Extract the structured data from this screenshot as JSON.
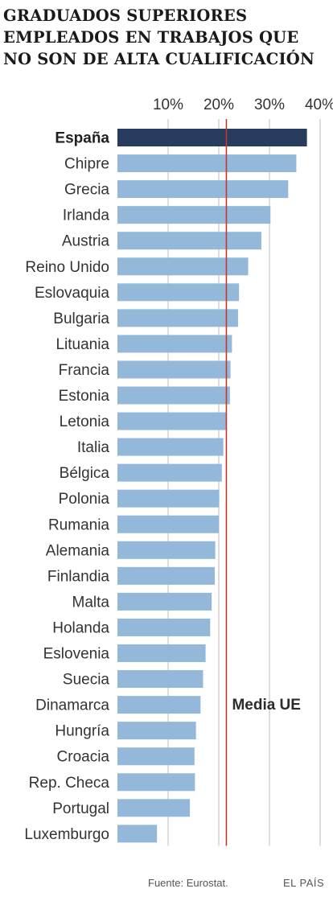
{
  "title_lines": [
    "GRADUADOS SUPERIORES",
    "EMPLEADOS EN TRABAJOS QUE",
    "NO SON DE ALTA CUALIFICACIÓN"
  ],
  "chart_data": {
    "type": "bar",
    "orientation": "horizontal",
    "title": "GRADUADOS SUPERIORES EMPLEADOS EN TRABAJOS QUE NO SON DE ALTA CUALIFICACIÓN",
    "categories": [
      "España",
      "Chipre",
      "Grecia",
      "Irlanda",
      "Austria",
      "Reino Unido",
      "Eslovaquia",
      "Bulgaria",
      "Lituania",
      "Francia",
      "Estonia",
      "Letonia",
      "Italia",
      "Bélgica",
      "Polonia",
      "Rumania",
      "Alemania",
      "Finlandia",
      "Malta",
      "Holanda",
      "Eslovenia",
      "Suecia",
      "Dinamarca",
      "Hungría",
      "Croacia",
      "Rep. Checa",
      "Portugal",
      "Luxemburgo"
    ],
    "values": [
      37.4,
      35.3,
      33.7,
      30.2,
      28.4,
      25.8,
      24.0,
      23.8,
      22.6,
      22.3,
      22.2,
      21.5,
      20.9,
      20.6,
      20.1,
      20.0,
      19.3,
      19.2,
      18.6,
      18.3,
      17.4,
      16.9,
      16.4,
      15.5,
      15.2,
      15.3,
      14.3,
      7.8
    ],
    "highlight": "España",
    "tick_labels": [
      "10%",
      "20%",
      "30%",
      "40%"
    ],
    "tick_values": [
      10,
      20,
      30,
      40
    ],
    "xlim": [
      0,
      40
    ],
    "reference_line": {
      "value": 21.5,
      "label": "Media UE",
      "color": "#c0392b"
    },
    "colors": {
      "bar": "#93b8d9",
      "highlight": "#283c5e",
      "gridline": "#bbbbbb"
    }
  },
  "footer": {
    "source": "Fuente: Eurostat.",
    "brand": "EL PAÍS"
  }
}
